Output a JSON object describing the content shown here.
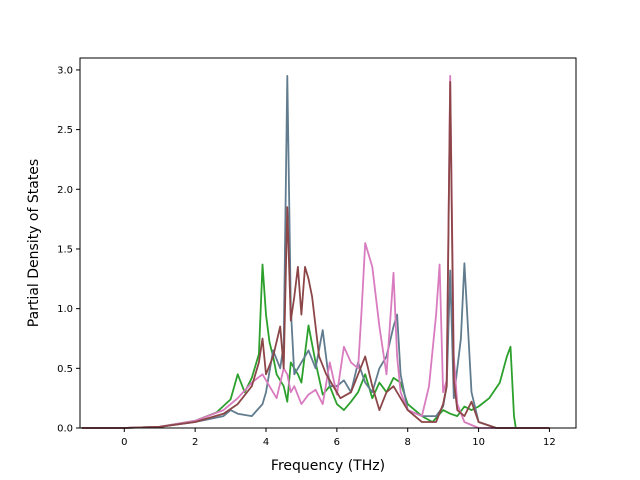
{
  "chart_data": {
    "type": "line",
    "title": "",
    "xlabel": "Frequency (THz)",
    "ylabel": "Partial Density of States",
    "xlim": [
      -1.25,
      12.75
    ],
    "ylim": [
      0,
      3.1
    ],
    "xticks": [
      "0",
      "2",
      "4",
      "6",
      "8",
      "10",
      "12"
    ],
    "xtick_values": [
      0,
      2,
      4,
      6,
      8,
      10,
      12
    ],
    "yticks": [
      "0.0",
      "0.5",
      "1.0",
      "1.5",
      "2.0",
      "2.5",
      "3.0"
    ],
    "ytick_values": [
      0,
      0.5,
      1.0,
      1.5,
      2.0,
      2.5,
      3.0
    ],
    "grid": false,
    "legend": "none",
    "series": [
      {
        "color": "#2ca02c",
        "x": [
          -1.2,
          0,
          1,
          2,
          2.6,
          3.0,
          3.2,
          3.4,
          3.6,
          3.8,
          3.9,
          4.0,
          4.1,
          4.2,
          4.3,
          4.5,
          4.6,
          4.7,
          4.9,
          5.0,
          5.2,
          5.4,
          5.6,
          5.8,
          6.0,
          6.2,
          6.4,
          6.6,
          6.8,
          7.0,
          7.2,
          7.4,
          7.6,
          7.8,
          8.0,
          8.4,
          8.7,
          9.0,
          9.2,
          9.4,
          9.6,
          9.8,
          10.0,
          10.3,
          10.6,
          10.8,
          10.9,
          11.0,
          11.05,
          12.0
        ],
        "y": [
          0,
          0,
          0.01,
          0.06,
          0.13,
          0.24,
          0.45,
          0.3,
          0.42,
          0.62,
          1.37,
          0.95,
          0.72,
          0.6,
          0.45,
          0.35,
          0.22,
          0.55,
          0.45,
          0.38,
          0.86,
          0.55,
          0.28,
          0.35,
          0.2,
          0.15,
          0.22,
          0.3,
          0.45,
          0.25,
          0.38,
          0.3,
          0.42,
          0.38,
          0.2,
          0.1,
          0.05,
          0.15,
          0.12,
          0.1,
          0.18,
          0.15,
          0.18,
          0.25,
          0.38,
          0.6,
          0.68,
          0.1,
          0,
          0
        ]
      },
      {
        "color": "#607c8e",
        "x": [
          -1.2,
          0,
          1,
          2,
          2.8,
          3.0,
          3.2,
          3.6,
          3.9,
          4.0,
          4.2,
          4.4,
          4.5,
          4.6,
          4.7,
          4.8,
          5.0,
          5.2,
          5.4,
          5.6,
          5.8,
          6.0,
          6.2,
          6.4,
          6.6,
          6.8,
          7.0,
          7.2,
          7.4,
          7.6,
          7.7,
          7.8,
          8.0,
          8.4,
          8.8,
          9.0,
          9.1,
          9.2,
          9.3,
          9.4,
          9.5,
          9.6,
          9.7,
          9.8,
          10.0,
          10.5,
          11.0,
          12.0
        ],
        "y": [
          0,
          0,
          0.01,
          0.05,
          0.1,
          0.15,
          0.12,
          0.1,
          0.2,
          0.3,
          0.65,
          0.5,
          0.7,
          2.95,
          1.0,
          0.45,
          0.55,
          0.65,
          0.5,
          0.82,
          0.35,
          0.35,
          0.4,
          0.3,
          0.55,
          0.38,
          0.3,
          0.5,
          0.6,
          0.85,
          0.95,
          0.45,
          0.15,
          0.1,
          0.1,
          0.18,
          0.35,
          1.32,
          0.25,
          0.5,
          0.75,
          1.38,
          0.85,
          0.3,
          0.05,
          0,
          0,
          0
        ]
      },
      {
        "color": "#d97bbf",
        "x": [
          -1.2,
          0,
          1,
          2,
          2.8,
          3.2,
          3.6,
          3.9,
          4.1,
          4.3,
          4.5,
          4.6,
          4.7,
          4.8,
          5.0,
          5.2,
          5.4,
          5.6,
          5.8,
          6.0,
          6.2,
          6.4,
          6.6,
          6.7,
          6.8,
          7.0,
          7.2,
          7.4,
          7.6,
          7.7,
          7.8,
          8.0,
          8.4,
          8.6,
          8.8,
          8.9,
          9.0,
          9.1,
          9.2,
          9.3,
          9.4,
          9.6,
          10.0,
          10.5,
          11.0,
          12.0
        ],
        "y": [
          0,
          0,
          0.01,
          0.06,
          0.15,
          0.25,
          0.38,
          0.45,
          0.35,
          0.25,
          0.5,
          0.45,
          0.3,
          0.35,
          0.2,
          0.28,
          0.32,
          0.2,
          0.55,
          0.28,
          0.68,
          0.55,
          0.5,
          1.0,
          1.55,
          1.35,
          0.85,
          0.45,
          1.3,
          0.6,
          0.3,
          0.15,
          0.1,
          0.35,
          0.95,
          1.37,
          0.3,
          0.4,
          2.95,
          0.6,
          0.2,
          0.05,
          0,
          0,
          0,
          0
        ]
      },
      {
        "color": "#8c4648",
        "x": [
          -1.2,
          0,
          1,
          2,
          2.8,
          3.2,
          3.6,
          3.8,
          3.9,
          4.0,
          4.2,
          4.4,
          4.5,
          4.6,
          4.7,
          4.8,
          4.9,
          5.0,
          5.1,
          5.2,
          5.3,
          5.5,
          5.7,
          5.9,
          6.1,
          6.4,
          6.6,
          6.8,
          7.0,
          7.2,
          7.4,
          7.6,
          7.8,
          8.0,
          8.4,
          8.8,
          9.0,
          9.1,
          9.2,
          9.3,
          9.4,
          9.6,
          9.8,
          10.0,
          10.5,
          11.0,
          12.0
        ],
        "y": [
          0,
          0,
          0.01,
          0.05,
          0.12,
          0.2,
          0.35,
          0.55,
          0.75,
          0.45,
          0.6,
          0.85,
          0.5,
          1.85,
          0.9,
          1.1,
          1.35,
          0.95,
          1.35,
          1.25,
          1.1,
          0.6,
          0.45,
          0.35,
          0.25,
          0.3,
          0.45,
          0.6,
          0.35,
          0.15,
          0.3,
          0.35,
          0.25,
          0.15,
          0.05,
          0.05,
          0.2,
          0.35,
          2.9,
          0.4,
          0.15,
          0.1,
          0.22,
          0.05,
          0,
          0,
          0
        ]
      }
    ]
  }
}
